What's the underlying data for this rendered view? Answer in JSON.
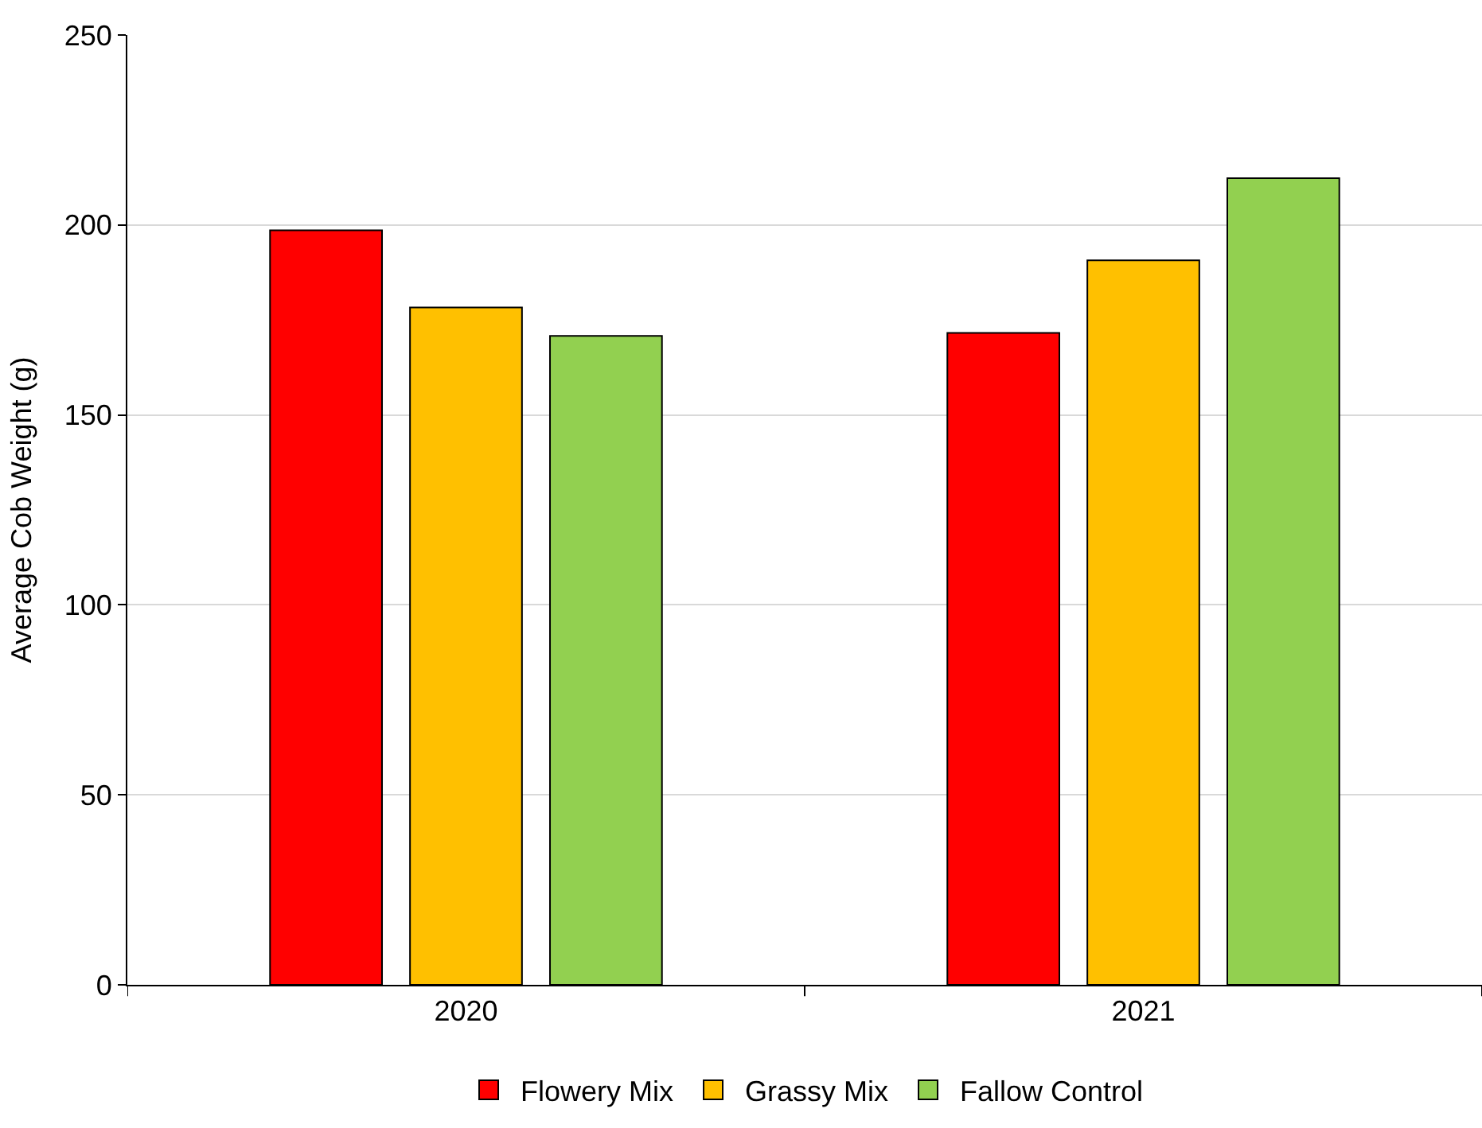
{
  "chart_data": {
    "type": "bar",
    "ylabel": "Average Cob Weight (g)",
    "categories": [
      "2020",
      "2021"
    ],
    "series": [
      {
        "name": "Flowery Mix",
        "color": "#ff0000",
        "values": [
          198.6,
          171.6
        ]
      },
      {
        "name": "Grassy Mix",
        "color": "#ffc000",
        "values": [
          178.3,
          190.7
        ]
      },
      {
        "name": "Fallow Control",
        "color": "#92d050",
        "values": [
          170.8,
          212.3
        ]
      }
    ],
    "ylim": [
      0,
      250
    ],
    "yticks": [
      0,
      50,
      100,
      150,
      200,
      250
    ],
    "grid": "y",
    "legend": "bottom"
  }
}
